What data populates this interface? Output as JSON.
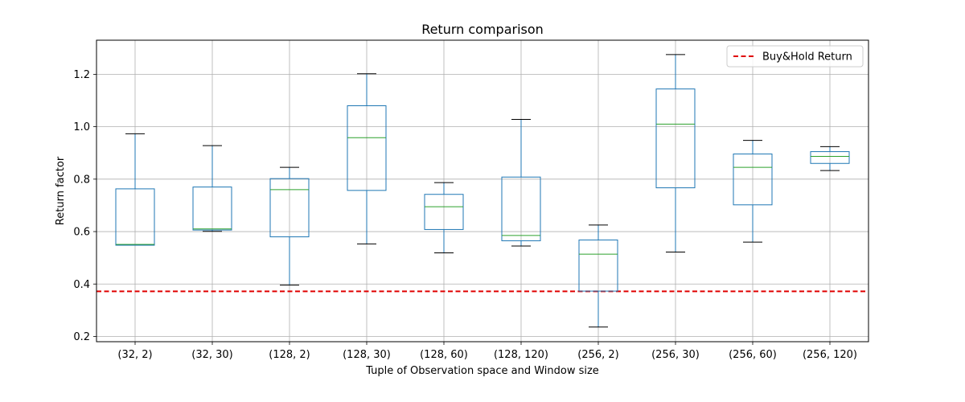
{
  "chart_data": {
    "type": "box",
    "title": "Return comparison",
    "xlabel": "Tuple of Observation space and Window size",
    "ylabel": "Return factor",
    "ylim": [
      0.18,
      1.33
    ],
    "yticks": [
      0.2,
      0.4,
      0.6,
      0.8,
      1.0,
      1.2
    ],
    "ytick_labels": [
      "0.2",
      "0.4",
      "0.6",
      "0.8",
      "1.0",
      "1.2"
    ],
    "grid": true,
    "legend": {
      "placement": "top-right",
      "entries": [
        {
          "label": "Buy&Hold Return",
          "color": "#e00000",
          "style": "dashed"
        }
      ]
    },
    "reference_line": {
      "name": "Buy&Hold Return",
      "value": 0.372
    },
    "colors": {
      "box": "#1f77b4",
      "median": "#2ca02c",
      "whisker_cap": "#000000",
      "grid": "#b0b0b0"
    },
    "categories": [
      "(32, 2)",
      "(32, 30)",
      "(128, 2)",
      "(128, 30)",
      "(128, 60)",
      "(128, 120)",
      "(256, 2)",
      "(256, 30)",
      "(256, 60)",
      "(256, 120)"
    ],
    "boxes": [
      {
        "whislo": 0.548,
        "q1": 0.548,
        "median": 0.551,
        "q3": 0.763,
        "whishi": 0.973
      },
      {
        "whislo": 0.601,
        "q1": 0.606,
        "median": 0.61,
        "q3": 0.77,
        "whishi": 0.928
      },
      {
        "whislo": 0.396,
        "q1": 0.58,
        "median": 0.76,
        "q3": 0.802,
        "whishi": 0.845
      },
      {
        "whislo": 0.553,
        "q1": 0.757,
        "median": 0.958,
        "q3": 1.08,
        "whishi": 1.202
      },
      {
        "whislo": 0.519,
        "q1": 0.608,
        "median": 0.695,
        "q3": 0.742,
        "whishi": 0.787
      },
      {
        "whislo": 0.545,
        "q1": 0.565,
        "median": 0.585,
        "q3": 0.808,
        "whishi": 1.028
      },
      {
        "whislo": 0.236,
        "q1": 0.373,
        "median": 0.514,
        "q3": 0.568,
        "whishi": 0.625
      },
      {
        "whislo": 0.522,
        "q1": 0.767,
        "median": 1.01,
        "q3": 1.144,
        "whishi": 1.275
      },
      {
        "whislo": 0.56,
        "q1": 0.702,
        "median": 0.845,
        "q3": 0.896,
        "whishi": 0.948
      },
      {
        "whislo": 0.833,
        "q1": 0.86,
        "median": 0.887,
        "q3": 0.905,
        "whishi": 0.924
      }
    ]
  }
}
